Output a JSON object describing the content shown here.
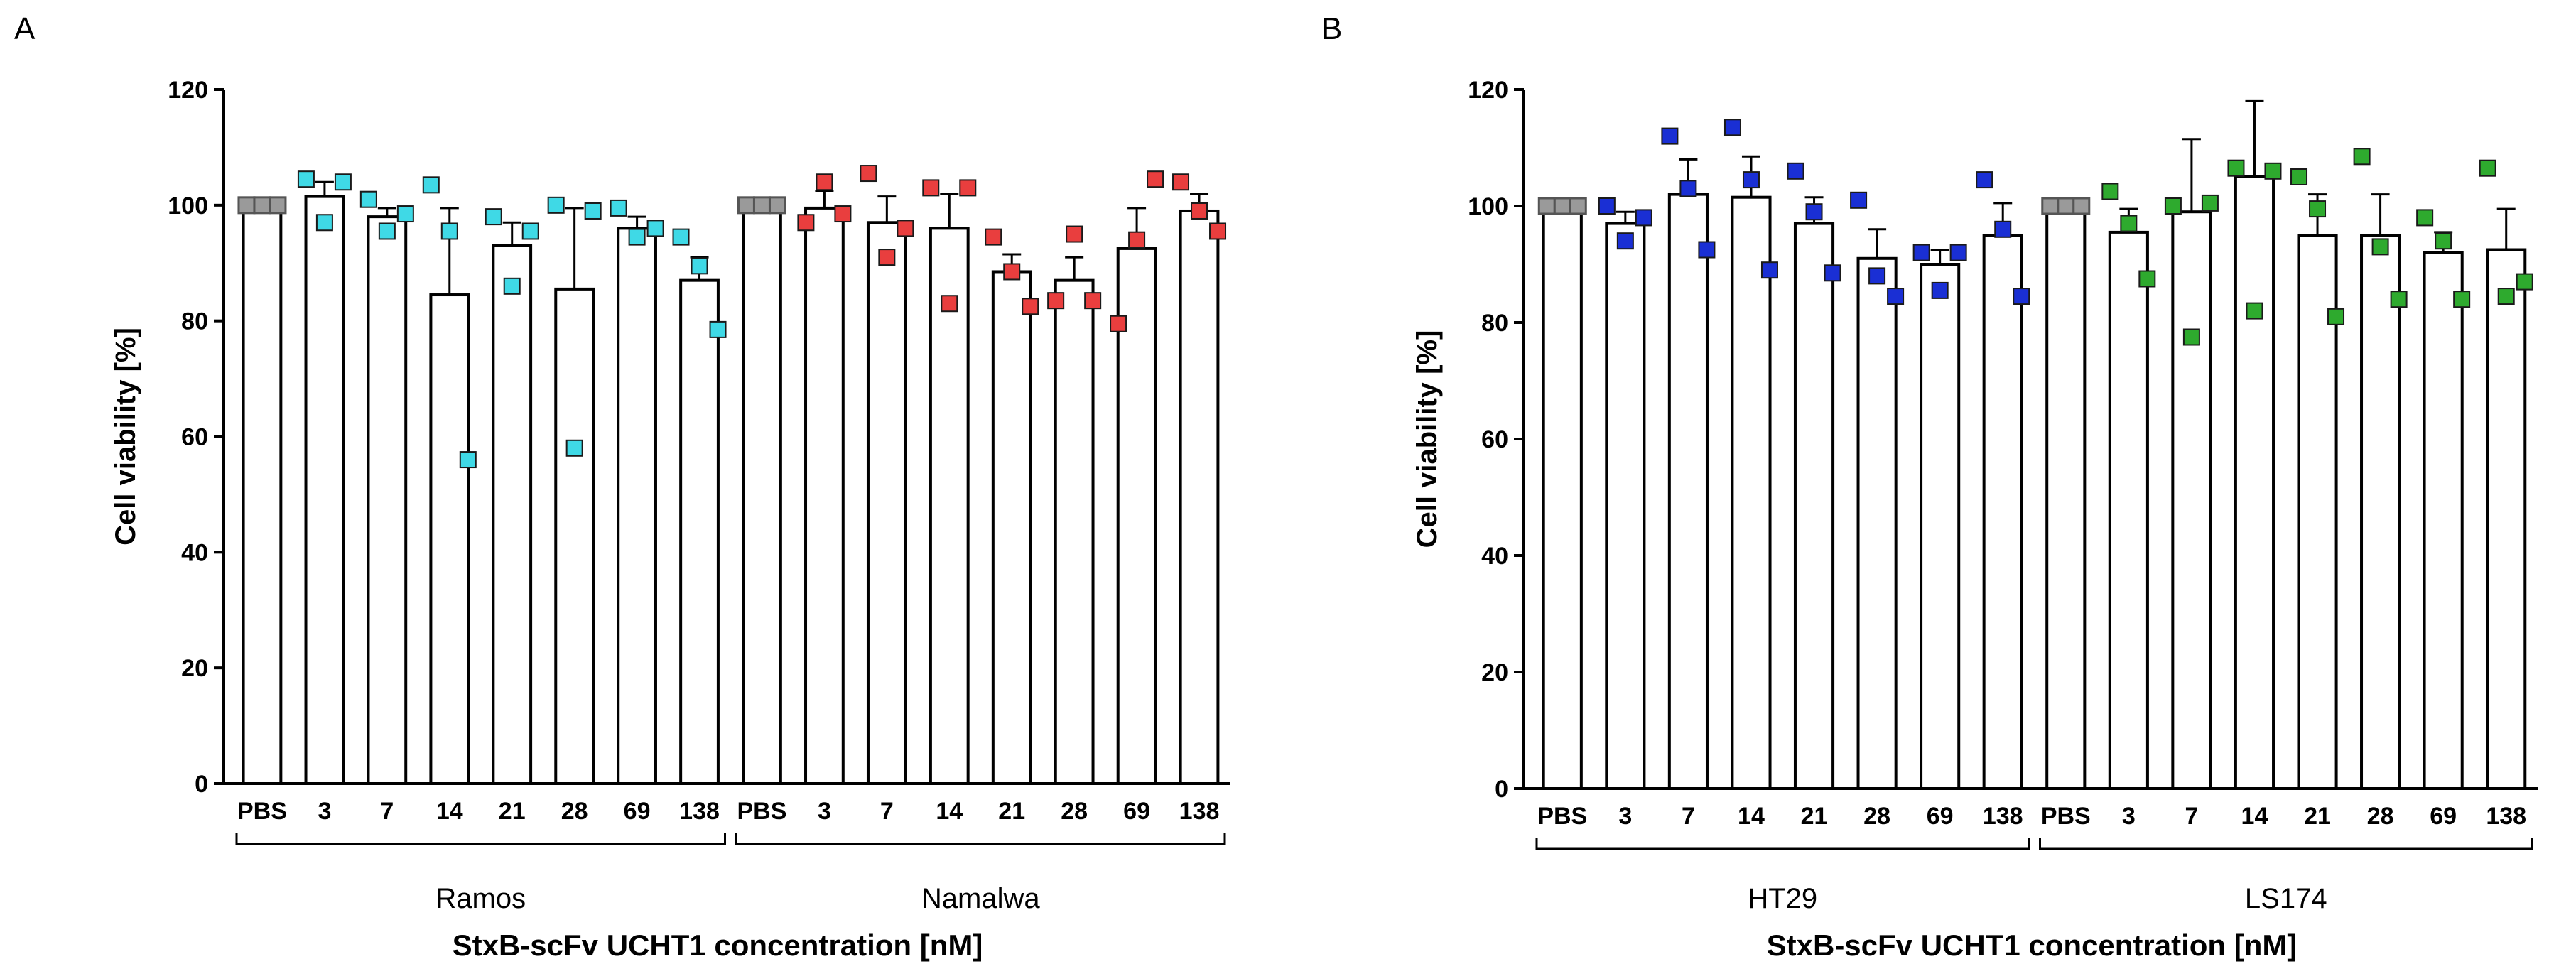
{
  "chart_data": [
    {
      "type": "bar",
      "panel_label": "A",
      "title": "",
      "xlabel": "StxB-scFv UCHT1 concentration [nM]",
      "ylabel": "Cell viability [%]",
      "ylim": [
        0,
        120
      ],
      "yticks": [
        "0",
        "20",
        "40",
        "60",
        "80",
        "100",
        "120"
      ],
      "grid": false,
      "groups": [
        {
          "name": "Ramos",
          "marker_color": "#3fd9e6",
          "categories": [
            "PBS",
            "3",
            "7",
            "14",
            "21",
            "28",
            "69",
            "138"
          ],
          "means": [
            100,
            101.5,
            98,
            84.5,
            93,
            85.5,
            96,
            87
          ],
          "errors": [
            0,
            2.5,
            1.5,
            15,
            4,
            14,
            2,
            4
          ],
          "points": [
            [
              100,
              100,
              100
            ],
            [
              104.5,
              97,
              104
            ],
            [
              101,
              95.5,
              98.5
            ],
            [
              103.5,
              95.5,
              56
            ],
            [
              98,
              86,
              95.5
            ],
            [
              100,
              58,
              99
            ],
            [
              99.5,
              94.5,
              96
            ],
            [
              94.5,
              89.5,
              78.5
            ]
          ]
        },
        {
          "name": "Namalwa",
          "marker_color": "#e93e3e",
          "categories": [
            "PBS",
            "3",
            "7",
            "14",
            "21",
            "28",
            "69",
            "138"
          ],
          "means": [
            100,
            99.5,
            97,
            96,
            88.5,
            87,
            92.5,
            99
          ],
          "errors": [
            0,
            3,
            4.5,
            6,
            3,
            4,
            7,
            3
          ],
          "points": [
            [
              100,
              100,
              100
            ],
            [
              97,
              104,
              98.5
            ],
            [
              105.5,
              91,
              96
            ],
            [
              103,
              83,
              103
            ],
            [
              94.5,
              88.5,
              82.5
            ],
            [
              83.5,
              95,
              83.5
            ],
            [
              79.5,
              94,
              104.5
            ],
            [
              104,
              99,
              95.5
            ]
          ]
        }
      ]
    },
    {
      "type": "bar",
      "panel_label": "B",
      "title": "",
      "xlabel": "StxB-scFv UCHT1 concentration [nM]",
      "ylabel": "Cell viability [%]",
      "ylim": [
        0,
        120
      ],
      "yticks": [
        "0",
        "20",
        "40",
        "60",
        "80",
        "100",
        "120"
      ],
      "grid": false,
      "groups": [
        {
          "name": "HT29",
          "marker_color": "#1a2fd4",
          "categories": [
            "PBS",
            "3",
            "7",
            "14",
            "21",
            "28",
            "69",
            "138"
          ],
          "means": [
            100,
            97,
            102,
            101.5,
            97,
            91,
            90,
            95
          ],
          "errors": [
            0,
            2,
            6,
            7,
            4.5,
            5,
            2.5,
            5.5
          ],
          "points": [
            [
              100,
              100,
              100
            ],
            [
              100,
              94,
              98
            ],
            [
              112,
              103,
              92.5
            ],
            [
              113.5,
              104.5,
              89
            ],
            [
              106,
              99,
              88.5
            ],
            [
              101,
              88,
              84.5
            ],
            [
              92,
              85.5,
              92
            ],
            [
              104.5,
              96,
              84.5
            ]
          ]
        },
        {
          "name": "LS174",
          "marker_color": "#2eaa2e",
          "categories": [
            "PBS",
            "3",
            "7",
            "14",
            "21",
            "28",
            "69",
            "138"
          ],
          "means": [
            100,
            95.5,
            99,
            105,
            95,
            95,
            92,
            92.5
          ],
          "errors": [
            0,
            4,
            12.5,
            13,
            7,
            7,
            3.5,
            7
          ],
          "points": [
            [
              100,
              100,
              100
            ],
            [
              102.5,
              97,
              87.5
            ],
            [
              100,
              77.5,
              100.5
            ],
            [
              106.5,
              82,
              106
            ],
            [
              105,
              99.5,
              81
            ],
            [
              108.5,
              93,
              84
            ],
            [
              98,
              94,
              84
            ],
            [
              106.5,
              84.5,
              87
            ]
          ]
        }
      ]
    }
  ]
}
